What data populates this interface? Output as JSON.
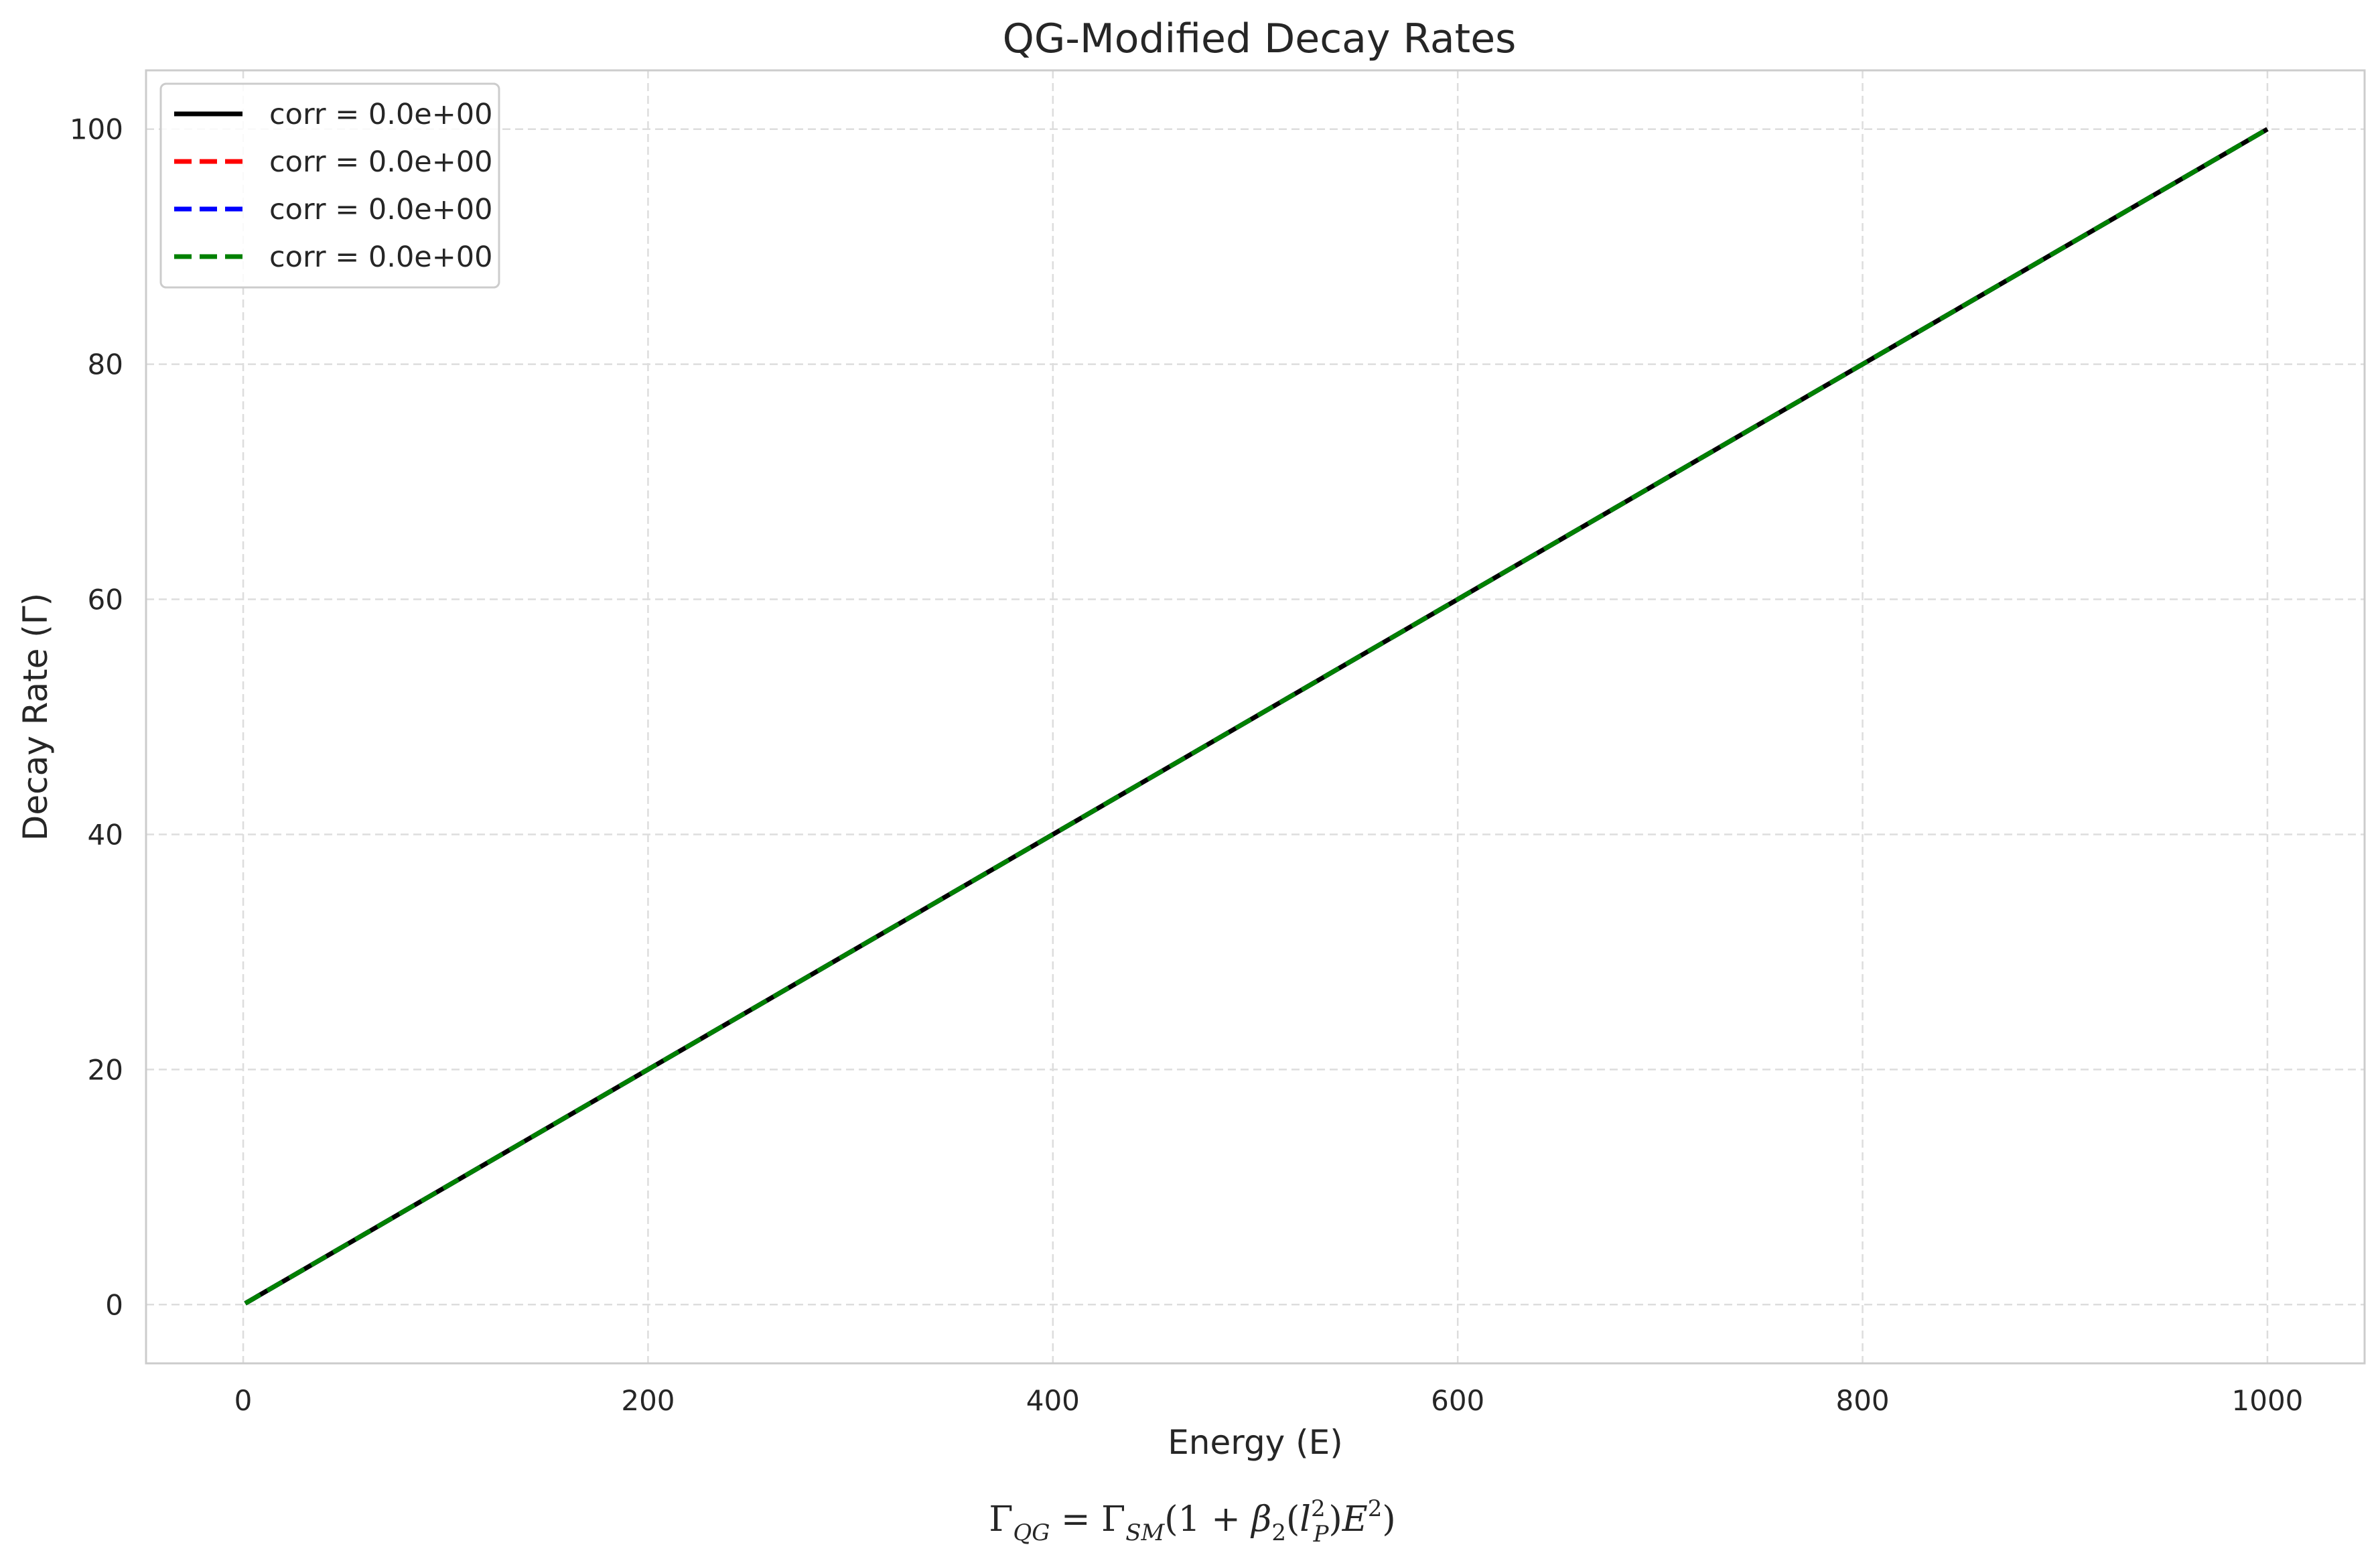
{
  "chart_data": {
    "type": "line",
    "title": "QG-Modified Decay Rates",
    "xlabel": "Energy (E)",
    "ylabel": "Decay Rate (Γ)",
    "xlim": [
      -48,
      1048
    ],
    "ylim": [
      -5,
      105
    ],
    "xticks": [
      0,
      200,
      400,
      600,
      800,
      1000
    ],
    "yticks": [
      0,
      20,
      40,
      60,
      80,
      100
    ],
    "grid": true,
    "legend_position": "upper left",
    "series": [
      {
        "name": "corr = 0.0e+00",
        "color": "#000000",
        "style": "solid",
        "x": [
          1,
          1000
        ],
        "y": [
          0.1,
          100
        ]
      },
      {
        "name": "corr = 0.0e+00",
        "color": "#ff0000",
        "style": "dashed",
        "x": [
          1,
          1000
        ],
        "y": [
          0.1,
          100
        ]
      },
      {
        "name": "corr = 0.0e+00",
        "color": "#0000ff",
        "style": "dashed",
        "x": [
          1,
          1000
        ],
        "y": [
          0.1,
          100
        ]
      },
      {
        "name": "corr = 0.0e+00",
        "color": "#008000",
        "style": "dashed",
        "x": [
          1,
          1000
        ],
        "y": [
          0.1,
          100
        ]
      }
    ],
    "annotation": {
      "Gamma": "Γ",
      "QG": "QG",
      "eq": " = ",
      "SM": "SM",
      "open": "(1 + ",
      "beta": "β",
      "two": "2",
      "paren_open": "(",
      "l": "l",
      "sq": "2",
      "P": "P",
      "paren_close": ")",
      "E": "E",
      "E_sq": "2",
      "close": ")"
    }
  },
  "colors": {
    "grid": "#dddddd",
    "frame": "#cccccc",
    "text": "#262626"
  }
}
